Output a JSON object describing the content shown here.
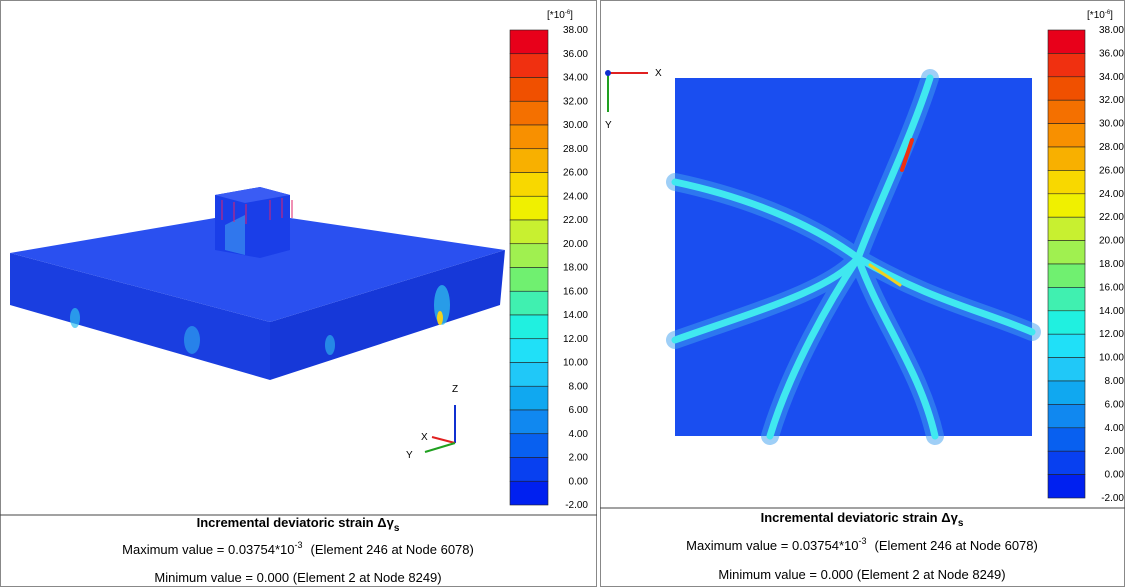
{
  "legend_colors": [
    "#e8001a",
    "#f03010",
    "#f05000",
    "#f47000",
    "#f89000",
    "#f8b000",
    "#f8d800",
    "#f0f000",
    "#c8f030",
    "#a0f050",
    "#70f070",
    "#40f0b0",
    "#20f0e0",
    "#20e0f8",
    "#20c8f8",
    "#10a8f0",
    "#1088f0",
    "#0860f0",
    "#0840f0",
    "#0020f0"
  ],
  "panels": [
    {
      "unit": {
        "prefix": "[*10",
        "exponent": "-6",
        "suffix": "]"
      },
      "legend_labels": [
        "38.00",
        "36.00",
        "34.00",
        "32.00",
        "30.00",
        "28.00",
        "26.00",
        "24.00",
        "22.00",
        "20.00",
        "18.00",
        "16.00",
        "14.00",
        "12.00",
        "10.00",
        "8.00",
        "6.00",
        "4.00",
        "2.00",
        "0.00",
        "-2.00"
      ],
      "axes": {
        "z": "Z",
        "x": "X",
        "y": "Y"
      },
      "caption": {
        "title": "Incremental deviatoric strain Δγ",
        "title_sub": "s",
        "max": {
          "prefix": "Maximum value = 0.03754*10",
          "exponent": "-3",
          "suffix": "(Element 246 at Node 6078)"
        },
        "min": "Minimum value = 0.000  (Element 2 at Node 8249)"
      }
    },
    {
      "unit": {
        "prefix": "[*10",
        "exponent": "-6",
        "suffix": "]"
      },
      "legend_labels": [
        "38.00",
        "36.00",
        "34.00",
        "32.00",
        "30.00",
        "28.00",
        "26.00",
        "24.00",
        "22.00",
        "20.00",
        "18.00",
        "16.00",
        "14.00",
        "12.00",
        "10.00",
        "8.00",
        "6.00",
        "4.00",
        "2.00",
        "0.00",
        "-2.00"
      ],
      "axes": {
        "x": "X",
        "y": "Y"
      },
      "caption": {
        "title": "Incremental deviatoric strain Δγ",
        "title_sub": "s",
        "max": {
          "prefix": "Maximum value = 0.03754*10",
          "exponent": "-3",
          "suffix": "(Element 246 at Node 6078)"
        },
        "min": "Minimum value = 0.000  (Element 2 at Node 8249)"
      }
    }
  ]
}
